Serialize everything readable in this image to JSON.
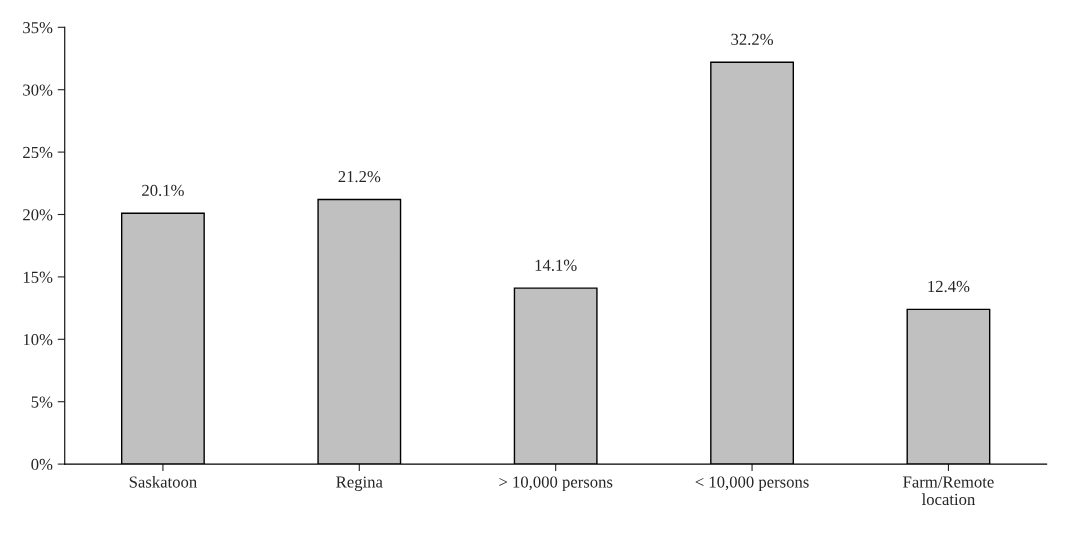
{
  "chart_data": {
    "type": "bar",
    "categories": [
      "Saskatoon",
      "Regina",
      "> 10,000 persons",
      "< 10,000 persons",
      "Farm/Remote\nlocation"
    ],
    "values": [
      20.1,
      21.2,
      14.1,
      32.2,
      12.4
    ],
    "value_labels": [
      "20.1%",
      "21.2%",
      "14.1%",
      "32.2%",
      "12.4%"
    ],
    "color": "#c0c0c0",
    "ylim": [
      0,
      35
    ],
    "yticks": [
      {
        "value": 0,
        "label": "0%"
      },
      {
        "value": 5,
        "label": "5%"
      },
      {
        "value": 10,
        "label": "10%"
      },
      {
        "value": 15,
        "label": "15%"
      },
      {
        "value": 20,
        "label": "20%"
      },
      {
        "value": 25,
        "label": "25%"
      },
      {
        "value": 30,
        "label": "30%"
      },
      {
        "value": 35,
        "label": "35%"
      }
    ],
    "grid": false
  }
}
